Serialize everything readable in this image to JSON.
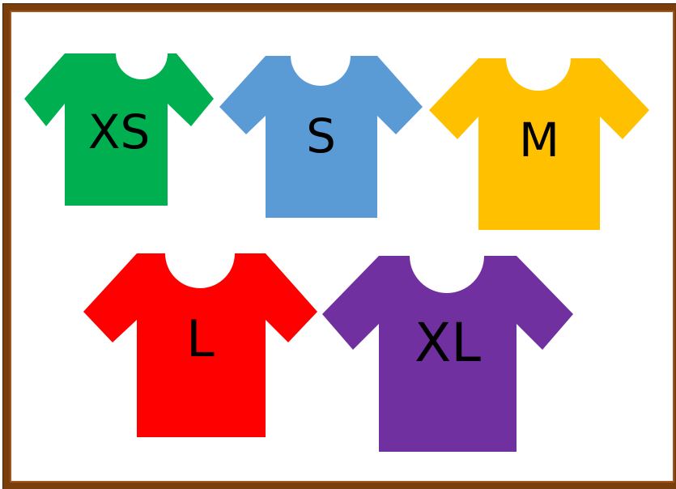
{
  "shirts": [
    {
      "id": "xs",
      "label": "XS",
      "color": "#00b050"
    },
    {
      "id": "s",
      "label": "S",
      "color": "#5b9bd5"
    },
    {
      "id": "m",
      "label": "M",
      "color": "#ffc000"
    },
    {
      "id": "l",
      "label": "L",
      "color": "#ff0000"
    },
    {
      "id": "xl",
      "label": "XL",
      "color": "#7030a0"
    }
  ]
}
